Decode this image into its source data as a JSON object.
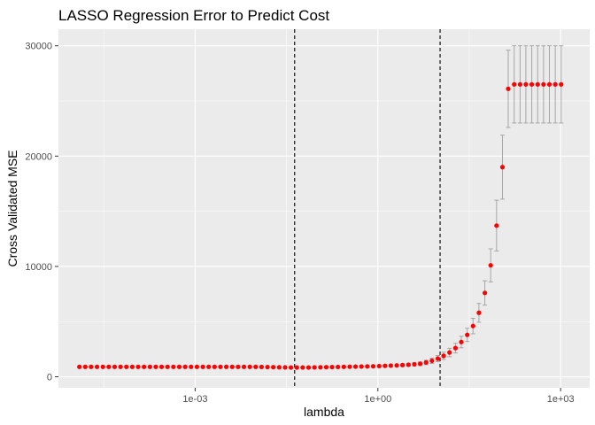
{
  "chart_data": {
    "type": "scatter",
    "title": "LASSO Regression Error to Predict Cost",
    "xlabel": "lambda",
    "ylabel": "Cross Validated MSE",
    "x_scale": "log10",
    "x_ticks": [
      0.001,
      1,
      1000
    ],
    "x_tick_labels": [
      "1e-03",
      "1e+00",
      "1e+03"
    ],
    "y_ticks": [
      0,
      10000,
      20000,
      30000
    ],
    "y_tick_labels": [
      "0",
      "10000",
      "20000",
      "30000"
    ],
    "xlim": [
      5.7e-06,
      3000
    ],
    "ylim": [
      -1000,
      31500
    ],
    "grid": true,
    "legend": "none",
    "vlines": [
      0.043,
      10.5
    ],
    "colors": {
      "points": "#ff0000",
      "errorbars": "#a6a6a6",
      "panel": "#ebebeb",
      "grid": "#ffffff",
      "vline": "#000000"
    },
    "series": [
      {
        "x": [
          1.26e-05,
          1.57e-05,
          1.96e-05,
          2.45e-05,
          3.06e-05,
          3.82e-05,
          4.77e-05,
          5.96e-05,
          7.44e-05,
          9.29e-05,
          0.000116,
          0.000145,
          0.000181,
          0.000226,
          0.000282,
          0.000352,
          0.00044,
          0.000549,
          0.000686,
          0.000857,
          0.00107,
          0.00134,
          0.00167,
          0.00208,
          0.0026,
          0.00325,
          0.00406,
          0.00507,
          0.00633,
          0.0079,
          0.00987,
          0.0123,
          0.0154,
          0.0192,
          0.024,
          0.03,
          0.0374,
          0.0467,
          0.0583,
          0.0728,
          0.0909,
          0.114,
          0.142,
          0.177,
          0.221,
          0.276,
          0.345,
          0.43,
          0.537,
          0.671,
          0.838,
          1.05,
          1.31,
          1.63,
          2.04,
          2.54,
          3.18,
          3.97,
          4.95,
          6.19,
          7.72,
          9.64,
          12.0,
          15.0,
          18.8,
          23.4,
          29.3,
          36.5,
          45.6,
          57.0,
          71.1,
          88.8,
          111,
          138,
          173,
          216,
          269,
          336,
          420,
          524,
          654,
          817,
          1020
        ],
        "y": [
          900,
          900,
          900,
          900,
          900,
          900,
          900,
          900,
          900,
          900,
          900,
          900,
          900,
          900,
          900,
          900,
          900,
          900,
          900,
          900,
          900,
          900,
          900,
          900,
          900,
          900,
          900,
          900,
          900,
          900,
          900,
          890,
          880,
          870,
          860,
          850,
          840,
          840,
          840,
          840,
          850,
          860,
          870,
          880,
          890,
          900,
          910,
          920,
          930,
          940,
          950,
          970,
          990,
          1010,
          1030,
          1060,
          1090,
          1130,
          1180,
          1300,
          1450,
          1650,
          1900,
          2200,
          2600,
          3150,
          3800,
          4600,
          5800,
          7600,
          10100,
          13700,
          19000,
          26100,
          26500,
          26500,
          26500,
          26500,
          26500,
          26500,
          26500,
          26500,
          26500
        ],
        "err": [
          60,
          60,
          60,
          60,
          60,
          60,
          60,
          60,
          60,
          60,
          60,
          60,
          60,
          60,
          60,
          60,
          60,
          60,
          60,
          60,
          60,
          60,
          60,
          60,
          60,
          60,
          60,
          60,
          60,
          60,
          60,
          60,
          60,
          60,
          60,
          60,
          60,
          60,
          60,
          60,
          60,
          60,
          60,
          60,
          60,
          60,
          60,
          60,
          60,
          60,
          60,
          70,
          80,
          90,
          100,
          110,
          130,
          150,
          170,
          200,
          240,
          280,
          330,
          380,
          440,
          520,
          600,
          700,
          850,
          1100,
          1500,
          2300,
          2900,
          3500,
          3500,
          3500,
          3500,
          3500,
          3500,
          3500,
          3500,
          3500,
          3500
        ]
      }
    ]
  }
}
